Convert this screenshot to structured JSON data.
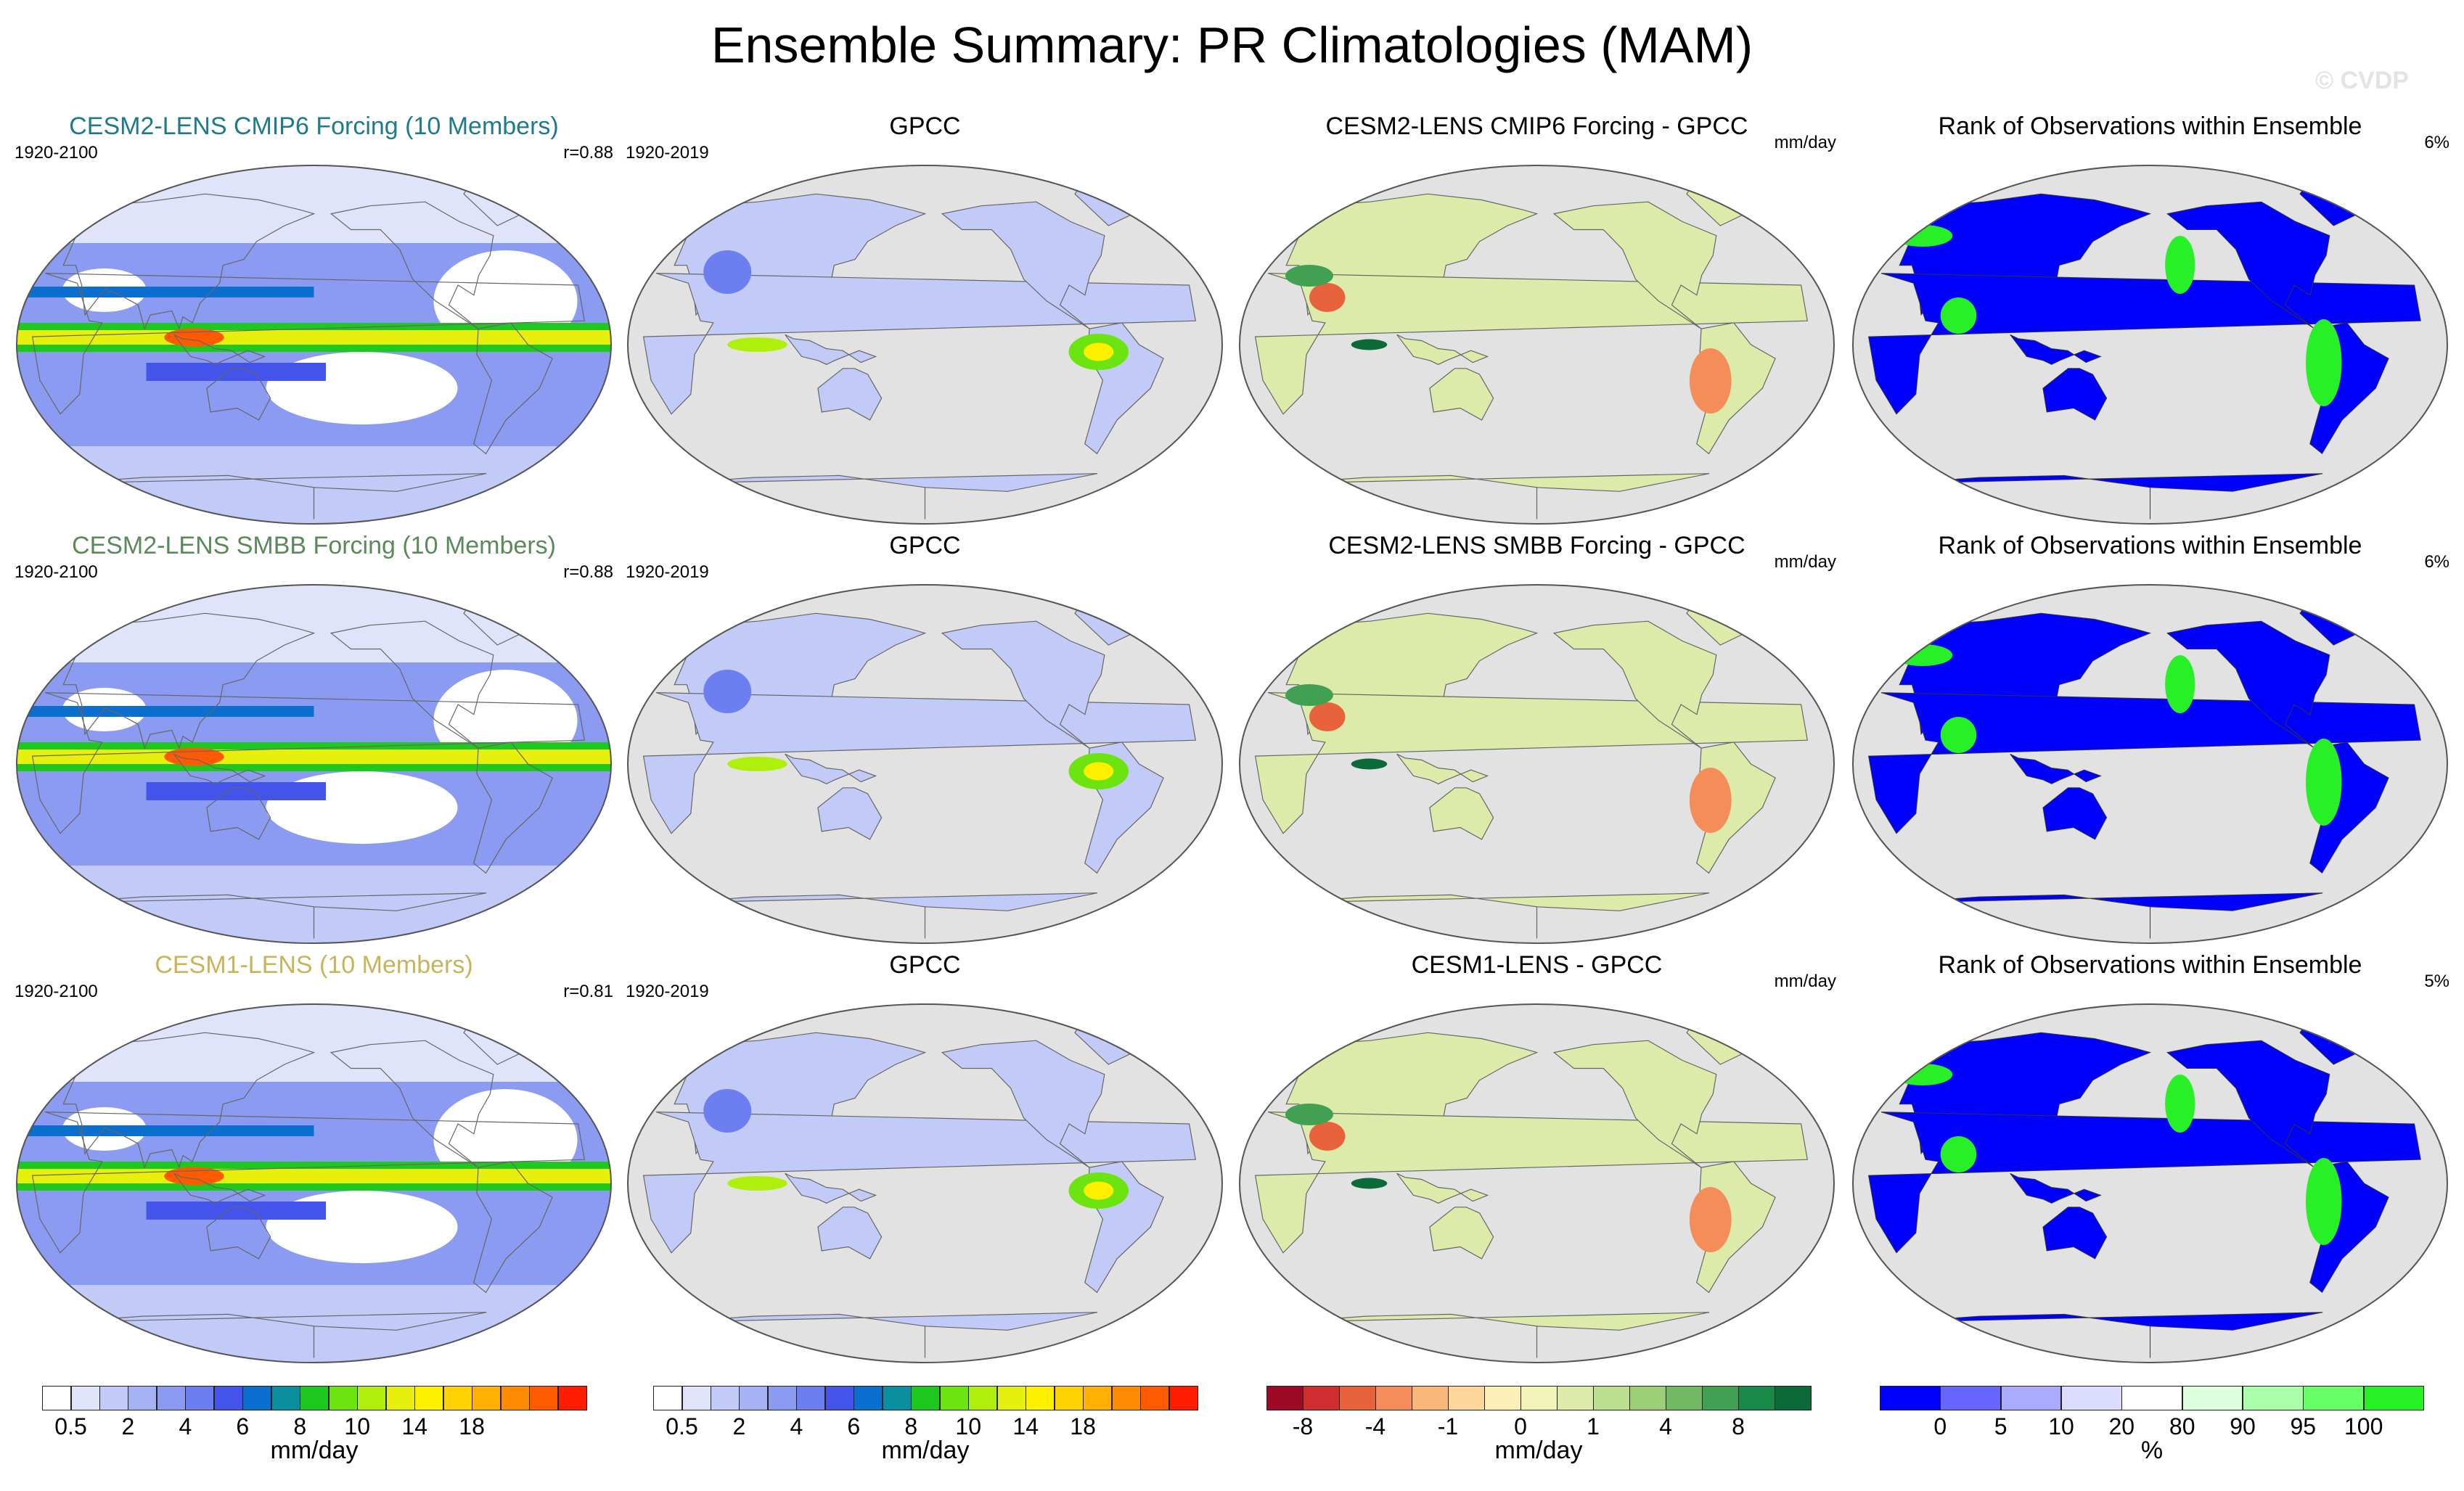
{
  "title": "Ensemble Summary: PR Climatologies (MAM)",
  "watermark": "© CVDP",
  "colors": {
    "cesm2_cmip6_title": "#1f7a8c",
    "cesm2_smbb_title": "#5a8a5a",
    "cesm1_title": "#c8b45a",
    "ocean_gray": "#e2e2e2",
    "rank_blue": "#0000ff",
    "rank_green": "#27f027"
  },
  "rows": [
    {
      "model": {
        "title": "CESM2-LENS CMIP6 Forcing (10 Members)",
        "period": "1920-2100",
        "corr": "r=0.88",
        "title_color": "#1f7a8c"
      },
      "obs": {
        "title": "GPCC",
        "period": "1920-2019"
      },
      "diff": {
        "title": "CESM2-LENS CMIP6 Forcing - GPCC",
        "units": "mm/day"
      },
      "rank": {
        "title": "Rank of Observations within Ensemble",
        "pct": "6%"
      }
    },
    {
      "model": {
        "title": "CESM2-LENS SMBB Forcing (10 Members)",
        "period": "1920-2100",
        "corr": "r=0.88",
        "title_color": "#5a8a5a"
      },
      "obs": {
        "title": "GPCC",
        "period": "1920-2019"
      },
      "diff": {
        "title": "CESM2-LENS SMBB Forcing - GPCC",
        "units": "mm/day"
      },
      "rank": {
        "title": "Rank of Observations within Ensemble",
        "pct": "6%"
      }
    },
    {
      "model": {
        "title": "CESM1-LENS (10 Members)",
        "period": "1920-2100",
        "corr": "r=0.81",
        "title_color": "#c8b45a"
      },
      "obs": {
        "title": "GPCC",
        "period": "1920-2019"
      },
      "diff": {
        "title": "CESM1-LENS - GPCC",
        "units": "mm/day"
      },
      "rank": {
        "title": "Rank of Observations within Ensemble",
        "pct": "5%"
      }
    }
  ],
  "colorbars": {
    "pr": {
      "colors": [
        "#ffffff",
        "#dfe4fb",
        "#c2cbf7",
        "#a5b3f4",
        "#8b9bf1",
        "#6d7ff0",
        "#4454ea",
        "#0a6fcf",
        "#0b8e9d",
        "#1fc81f",
        "#6be40f",
        "#aef00c",
        "#e6f00c",
        "#fff000",
        "#ffd200",
        "#ffb000",
        "#ff8c00",
        "#ff5a00",
        "#ff1c00"
      ],
      "ticks": [
        "0.5",
        "2",
        "4",
        "6",
        "8",
        "10",
        "14",
        "18"
      ],
      "tick_after_box": [
        1,
        3,
        5,
        7,
        9,
        11,
        13,
        15
      ],
      "units": "mm/day"
    },
    "diff": {
      "colors": [
        "#9e0a26",
        "#cf2e2e",
        "#e8623c",
        "#f48d5a",
        "#f9b779",
        "#fcd69a",
        "#fdefb8",
        "#f2f3b9",
        "#dcebaa",
        "#bcdf8f",
        "#9ccf78",
        "#73b964",
        "#42a053",
        "#1a8847",
        "#0b6a37"
      ],
      "ticks": [
        "-8",
        "-4",
        "-1",
        "0",
        "1",
        "4",
        "8"
      ],
      "tick_after_box": [
        1,
        3,
        5,
        7,
        9,
        11,
        13
      ],
      "units": "mm/day"
    },
    "rank": {
      "colors": [
        "#0000ff",
        "#6666ff",
        "#aaaaff",
        "#dcdcff",
        "#ffffff",
        "#dcffdc",
        "#aaffaa",
        "#66ff66",
        "#27f027"
      ],
      "ticks": [
        "0",
        "5",
        "10",
        "20",
        "80",
        "90",
        "95",
        "100"
      ],
      "tick_after_box": [
        1,
        2,
        3,
        4,
        5,
        6,
        7,
        8
      ],
      "units": "%"
    }
  }
}
